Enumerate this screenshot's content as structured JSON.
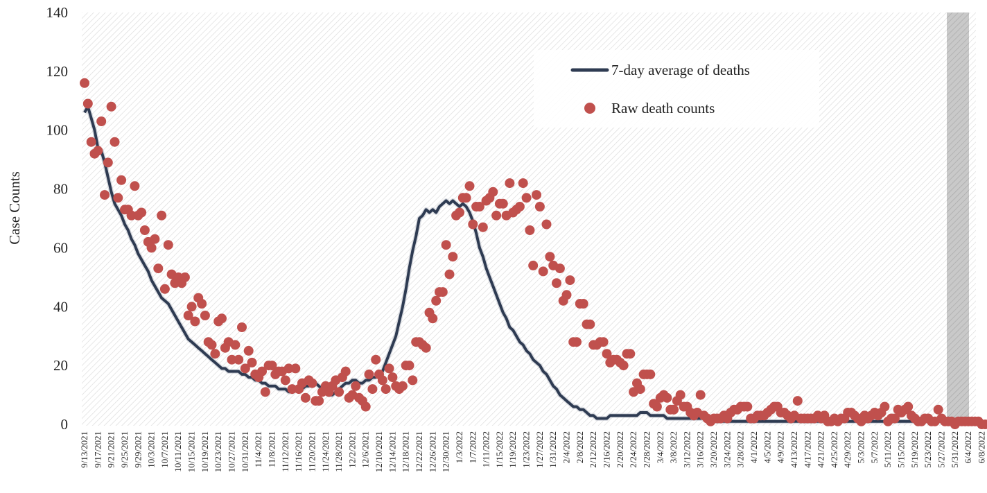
{
  "chart_data": {
    "type": "line",
    "title": "",
    "xlabel": "",
    "ylabel": "Case Counts",
    "ylim": [
      0,
      140
    ],
    "y_ticks": [
      0,
      20,
      40,
      60,
      80,
      100,
      120,
      140
    ],
    "x_start_date": "2021-09-13",
    "x_tick_labels": [
      "9/13/2021",
      "9/17/2021",
      "9/21/2021",
      "9/25/2021",
      "9/29/2021",
      "10/3/2021",
      "10/7/2021",
      "10/11/2021",
      "10/15/2021",
      "10/19/2021",
      "10/23/2021",
      "10/27/2021",
      "10/31/2021",
      "11/4/2021",
      "11/8/2021",
      "11/12/2021",
      "11/16/2021",
      "11/20/2021",
      "11/24/2021",
      "11/28/2021",
      "12/2/2021",
      "12/6/2021",
      "12/10/2021",
      "12/14/2021",
      "12/18/2021",
      "12/22/2021",
      "12/26/2021",
      "12/30/2021",
      "1/3/2022",
      "1/7/2022",
      "1/11/2022",
      "1/15/2022",
      "1/19/2022",
      "1/23/2022",
      "1/27/2022",
      "1/31/2022",
      "2/4/2022",
      "2/8/2022",
      "2/12/2022",
      "2/16/2022",
      "2/20/2022",
      "2/24/2022",
      "2/28/2022",
      "3/4/2022",
      "3/8/2022",
      "3/12/2022",
      "3/16/2022",
      "3/20/2022",
      "3/24/2022",
      "3/28/2022",
      "4/1/2022",
      "4/5/2022",
      "4/9/2022",
      "4/13/2022",
      "4/17/2022",
      "4/21/2022",
      "4/25/2022",
      "4/29/2022",
      "5/3/2022",
      "5/7/2022",
      "5/11/2022",
      "5/15/2022",
      "5/19/2022",
      "5/23/2022",
      "5/27/2022",
      "5/31/2022",
      "6/4/2022",
      "6/8/2022"
    ],
    "shaded_region": {
      "from": "6/1/2022",
      "to": "6/8/2022"
    },
    "grid": false,
    "legend_position": "top-right",
    "series": [
      {
        "name": "7-day average of deaths",
        "type": "line",
        "color": "#2e3b52",
        "values": [
          106,
          108,
          104,
          100,
          94,
          93,
          89,
          84,
          79,
          75,
          73,
          71,
          68,
          66,
          63,
          61,
          58,
          56,
          54,
          52,
          49,
          47,
          45,
          43,
          42,
          41,
          39,
          37,
          35,
          33,
          31,
          29,
          28,
          27,
          26,
          25,
          24,
          23,
          22,
          21,
          20,
          19,
          19,
          18,
          18,
          18,
          18,
          17,
          17,
          16,
          16,
          15,
          15,
          14,
          14,
          13,
          13,
          13,
          12,
          12,
          12,
          11,
          11,
          12,
          12,
          12,
          13,
          13,
          14,
          14,
          13,
          12,
          11,
          10,
          10,
          11,
          12,
          13,
          14,
          14,
          15,
          15,
          14,
          14,
          15,
          15,
          16,
          16,
          17,
          18,
          21,
          24,
          27,
          30,
          35,
          40,
          46,
          53,
          59,
          64,
          70,
          71,
          73,
          72,
          73,
          72,
          74,
          75,
          76,
          75,
          76,
          75,
          74,
          75,
          74,
          72,
          69,
          65,
          60,
          57,
          53,
          50,
          47,
          44,
          41,
          38,
          36,
          33,
          32,
          30,
          28,
          27,
          25,
          24,
          22,
          21,
          20,
          18,
          17,
          15,
          13,
          12,
          10,
          9,
          8,
          7,
          6,
          6,
          5,
          5,
          4,
          3,
          3,
          2,
          2,
          2,
          2,
          3,
          3,
          3,
          3,
          3,
          3,
          3,
          3,
          3,
          4,
          4,
          4,
          3,
          3,
          3,
          3,
          3,
          2,
          2,
          2,
          2,
          2,
          2,
          2,
          2,
          2,
          2,
          2,
          2,
          2,
          2,
          1,
          1,
          1,
          1,
          1,
          1,
          1,
          1,
          1,
          1,
          1,
          1,
          1,
          1,
          1,
          1,
          1,
          1,
          1,
          1,
          1,
          1,
          1,
          1,
          1,
          1,
          1,
          1,
          1,
          1,
          1,
          1,
          1,
          1,
          1,
          1,
          1,
          1,
          1,
          1,
          1,
          1,
          1,
          1,
          1,
          1,
          1,
          1,
          1,
          1,
          1,
          1,
          1,
          1,
          1,
          1,
          1,
          1,
          1,
          1,
          1,
          1,
          1,
          1,
          1,
          1,
          1,
          1,
          1,
          1,
          1,
          1,
          1,
          1,
          1,
          1,
          1
        ]
      },
      {
        "name": "Raw death counts",
        "type": "scatter",
        "color": "#c0504d",
        "values": [
          116,
          109,
          96,
          92,
          93,
          103,
          78,
          89,
          108,
          96,
          77,
          83,
          73,
          73,
          71,
          81,
          71,
          72,
          66,
          62,
          60,
          63,
          53,
          71,
          46,
          61,
          51,
          48,
          50,
          48,
          50,
          37,
          40,
          35,
          43,
          41,
          37,
          28,
          27,
          24,
          35,
          36,
          26,
          28,
          22,
          27,
          22,
          33,
          19,
          25,
          21,
          17,
          16,
          18,
          11,
          20,
          20,
          17,
          18,
          18,
          15,
          19,
          12,
          19,
          12,
          14,
          9,
          15,
          14,
          8,
          8,
          11,
          13,
          11,
          13,
          15,
          11,
          16,
          18,
          9,
          10,
          13,
          9,
          8,
          6,
          17,
          12,
          22,
          17,
          15,
          12,
          19,
          16,
          13,
          12,
          13,
          20,
          20,
          15,
          28,
          28,
          27,
          26,
          38,
          36,
          42,
          45,
          45,
          61,
          51,
          57,
          71,
          72,
          77,
          77,
          81,
          68,
          74,
          74,
          67,
          76,
          77,
          79,
          71,
          75,
          75,
          71,
          82,
          72,
          73,
          74,
          82,
          77,
          66,
          54,
          78,
          74,
          52,
          68,
          57,
          54,
          48,
          53,
          42,
          44,
          49,
          28,
          28,
          41,
          41,
          34,
          34,
          27,
          27,
          28,
          28,
          24,
          21,
          22,
          22,
          21,
          20,
          24,
          24,
          11,
          14,
          12,
          17,
          17,
          17,
          7,
          6,
          9,
          10,
          9,
          5,
          5,
          8,
          10,
          6,
          6,
          4,
          3,
          4,
          10,
          3,
          2,
          1,
          2,
          2,
          2,
          3,
          2,
          4,
          5,
          5,
          6,
          6,
          6,
          2,
          2,
          3,
          3,
          3,
          4,
          5,
          6,
          6,
          4,
          4,
          3,
          2,
          3,
          8,
          2,
          2,
          2,
          2,
          2,
          3,
          2,
          3,
          1,
          1,
          2,
          1,
          2,
          2,
          4,
          4,
          3,
          2,
          1,
          3,
          2,
          3,
          4,
          3,
          4,
          6,
          1,
          2,
          2,
          5,
          4,
          5,
          6,
          3,
          2,
          1,
          1,
          2,
          2,
          1,
          1,
          5,
          2,
          1,
          1,
          1,
          0,
          1,
          1,
          1,
          1,
          1,
          1,
          1,
          0,
          0,
          0
        ]
      }
    ]
  }
}
